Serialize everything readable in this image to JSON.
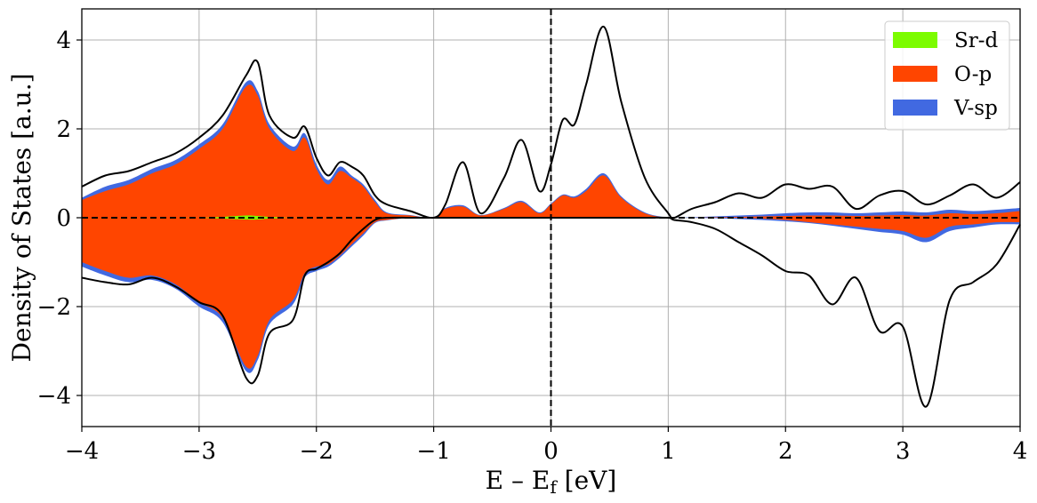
{
  "chart_data": {
    "type": "area",
    "xlabel": "E – E",
    "xlabel_sub": "f",
    "xlabel_unit": " [eV]",
    "ylabel": "Density of States [a.u.]",
    "xlim": [
      -4,
      4
    ],
    "ylim": [
      -4.7,
      4.7
    ],
    "xticks": [
      -4,
      -3,
      -2,
      -1,
      0,
      1,
      2,
      3,
      4
    ],
    "xtick_labels": [
      "−4",
      "−3",
      "−2",
      "−1",
      "0",
      "1",
      "2",
      "3",
      "4"
    ],
    "yticks": [
      -4,
      -2,
      0,
      2,
      4
    ],
    "ytick_labels": [
      "−4",
      "−2",
      "0",
      "2",
      "4"
    ],
    "grid": true,
    "legend_position": "top-right",
    "reference_lines": {
      "fermi_level_x": 0,
      "zero_y": 0
    },
    "colors": {
      "sr_d": "#7CFC00",
      "o_p": "#FF4500",
      "v_sp": "#4169E1",
      "total": "#000000"
    },
    "legend": [
      "Sr-d",
      "O-p",
      "V-sp"
    ],
    "x": [
      -4.0,
      -3.8,
      -3.6,
      -3.4,
      -3.2,
      -3.0,
      -2.8,
      -2.6,
      -2.5,
      -2.4,
      -2.2,
      -2.1,
      -2.0,
      -1.9,
      -1.8,
      -1.7,
      -1.6,
      -1.5,
      -1.4,
      -1.2,
      -1.0,
      -0.9,
      -0.75,
      -0.6,
      -0.4,
      -0.25,
      -0.1,
      0.0,
      0.1,
      0.2,
      0.3,
      0.45,
      0.6,
      0.8,
      1.0,
      1.05,
      1.2,
      1.4,
      1.6,
      1.8,
      2.0,
      2.2,
      2.4,
      2.6,
      2.8,
      3.0,
      3.2,
      3.4,
      3.6,
      3.8,
      4.0
    ],
    "series": [
      {
        "name": "Sr-d",
        "up": [
          0,
          0,
          0,
          0,
          0,
          0,
          0.02,
          0.05,
          0.04,
          0.02,
          0,
          0,
          0,
          0,
          0,
          0,
          0,
          0,
          0,
          0,
          0,
          0,
          0,
          0,
          0,
          0,
          0,
          0,
          0,
          0,
          0,
          0,
          0,
          0,
          0,
          0,
          0,
          0,
          0,
          0,
          0,
          0,
          0,
          0,
          0,
          0,
          0,
          0,
          0,
          0,
          0
        ],
        "down": [
          0,
          0,
          0,
          0,
          0,
          0,
          -0.02,
          -0.04,
          -0.04,
          -0.02,
          0,
          0,
          0,
          0,
          0,
          0,
          0,
          0,
          0,
          0,
          0,
          0,
          0,
          0,
          0,
          0,
          0,
          0,
          0,
          0,
          0,
          0,
          0,
          0,
          0,
          0,
          0,
          0,
          0,
          0,
          0,
          0,
          0,
          0,
          0,
          0,
          0,
          0,
          0,
          0,
          0
        ]
      },
      {
        "name": "O-p",
        "up": [
          0.4,
          0.6,
          0.75,
          1.0,
          1.2,
          1.55,
          2.0,
          2.95,
          2.75,
          2.0,
          1.5,
          1.8,
          1.1,
          0.75,
          1.05,
          0.9,
          0.7,
          0.35,
          0.1,
          0.05,
          0.0,
          0.2,
          0.25,
          0.05,
          0.2,
          0.35,
          0.1,
          0.3,
          0.5,
          0.45,
          0.6,
          0.95,
          0.45,
          0.1,
          0.0,
          0.0,
          0.0,
          0.01,
          0.02,
          0.03,
          0.04,
          0.05,
          0.05,
          0.04,
          0.05,
          0.06,
          0.05,
          0.1,
          0.08,
          0.1,
          0.15
        ],
        "down": [
          -1.0,
          -1.2,
          -1.35,
          -1.3,
          -1.5,
          -1.9,
          -2.25,
          -3.35,
          -3.1,
          -2.3,
          -1.85,
          -1.25,
          -1.1,
          -1.05,
          -0.85,
          -0.6,
          -0.35,
          -0.1,
          -0.05,
          0.0,
          0.0,
          0.0,
          0.0,
          0.0,
          0.0,
          0.0,
          0.0,
          0.0,
          0.0,
          0.0,
          0.0,
          0.0,
          0.0,
          0.0,
          0.0,
          0.0,
          0.0,
          0.0,
          0.0,
          -0.02,
          -0.05,
          -0.1,
          -0.15,
          -0.2,
          -0.25,
          -0.3,
          -0.45,
          -0.2,
          -0.15,
          -0.1,
          -0.1
        ]
      },
      {
        "name": "V-sp",
        "up": [
          0.45,
          0.7,
          0.85,
          1.1,
          1.3,
          1.65,
          2.1,
          3.05,
          2.85,
          2.1,
          1.6,
          1.9,
          1.2,
          0.85,
          1.15,
          0.95,
          0.75,
          0.4,
          0.12,
          0.06,
          0.0,
          0.22,
          0.28,
          0.06,
          0.22,
          0.38,
          0.12,
          0.32,
          0.52,
          0.48,
          0.65,
          1.0,
          0.48,
          0.12,
          0.0,
          0.0,
          0.01,
          0.03,
          0.05,
          0.07,
          0.1,
          0.12,
          0.12,
          0.1,
          0.12,
          0.14,
          0.12,
          0.18,
          0.15,
          0.18,
          0.22
        ],
        "down": [
          -1.1,
          -1.3,
          -1.45,
          -1.4,
          -1.6,
          -2.0,
          -2.35,
          -3.45,
          -3.2,
          -2.4,
          -1.95,
          -1.35,
          -1.2,
          -1.1,
          -0.9,
          -0.65,
          -0.4,
          -0.12,
          -0.06,
          0.0,
          0.0,
          0.0,
          0.0,
          0.0,
          0.0,
          0.0,
          0.0,
          0.0,
          0.0,
          0.0,
          0.0,
          0.0,
          0.0,
          0.0,
          0.0,
          0.0,
          0.0,
          -0.01,
          -0.03,
          -0.05,
          -0.08,
          -0.12,
          -0.18,
          -0.25,
          -0.32,
          -0.38,
          -0.55,
          -0.3,
          -0.22,
          -0.15,
          -0.15
        ]
      },
      {
        "name": "Total",
        "up": [
          0.7,
          0.95,
          1.05,
          1.25,
          1.45,
          1.8,
          2.3,
          3.2,
          3.5,
          2.3,
          1.8,
          2.05,
          1.35,
          0.95,
          1.25,
          1.15,
          0.95,
          0.5,
          0.3,
          0.15,
          0.0,
          0.3,
          1.25,
          0.1,
          0.9,
          1.75,
          0.6,
          1.2,
          2.2,
          2.1,
          3.0,
          4.3,
          2.6,
          0.9,
          0.1,
          0.0,
          0.2,
          0.35,
          0.55,
          0.45,
          0.75,
          0.65,
          0.7,
          0.2,
          0.5,
          0.6,
          0.3,
          0.5,
          0.75,
          0.45,
          0.8
        ],
        "down": [
          -1.35,
          -1.45,
          -1.5,
          -1.35,
          -1.55,
          -1.9,
          -2.2,
          -3.6,
          -3.55,
          -2.6,
          -2.3,
          -1.3,
          -1.15,
          -1.0,
          -0.8,
          -0.5,
          -0.25,
          -0.05,
          0.0,
          0.0,
          0.0,
          0.0,
          0.0,
          0.0,
          0.0,
          0.0,
          0.0,
          0.0,
          0.0,
          0.0,
          0.0,
          0.0,
          0.0,
          0.0,
          0.0,
          -0.05,
          -0.1,
          -0.25,
          -0.55,
          -0.85,
          -1.2,
          -1.3,
          -1.95,
          -1.35,
          -2.55,
          -2.45,
          -4.25,
          -1.85,
          -1.45,
          -1.05,
          -0.15
        ]
      }
    ]
  }
}
